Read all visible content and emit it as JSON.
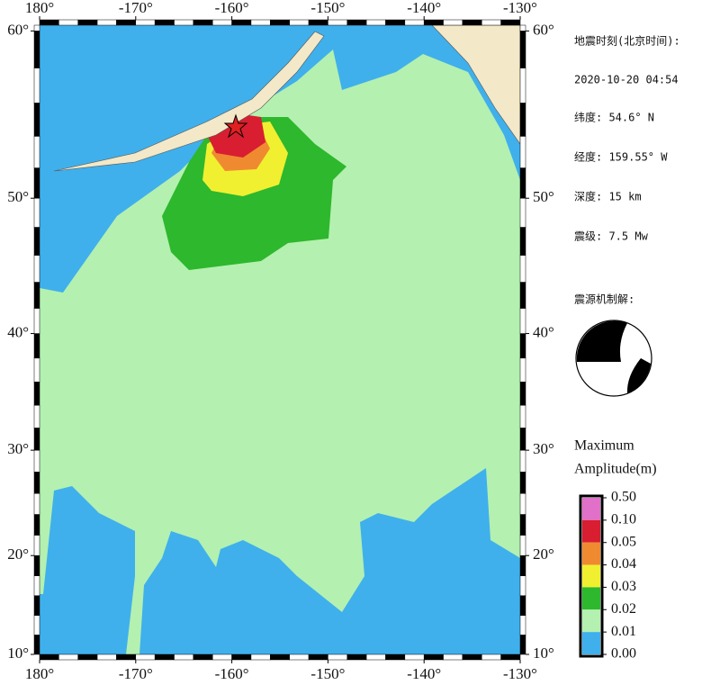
{
  "map": {
    "lon_ticks": [
      {
        "value": 180,
        "label": "180°"
      },
      {
        "value": -170,
        "label": "-170°"
      },
      {
        "value": -160,
        "label": "-160°"
      },
      {
        "value": -150,
        "label": "-150°"
      },
      {
        "value": -140,
        "label": "-140°"
      },
      {
        "value": -130,
        "label": "-130°"
      }
    ],
    "lat_ticks": [
      {
        "value": 60,
        "label": "60°"
      },
      {
        "value": 50,
        "label": "50°"
      },
      {
        "value": 40,
        "label": "40°"
      },
      {
        "value": 30,
        "label": "30°"
      },
      {
        "value": 20,
        "label": "20°"
      },
      {
        "value": 10,
        "label": "10°"
      }
    ]
  },
  "info": {
    "time_label": "地震时刻(北京时间):",
    "time": "2020-10-20 04:54",
    "latitude": "纬度: 54.6° N",
    "longitude": "经度: 159.55° W",
    "depth": "深度: 15 km",
    "magnitude": "震级: 7.5 Mw",
    "mechanism_label": "震源机制解:"
  },
  "legend": {
    "title": [
      "Maximum",
      "Amplitude(m)"
    ],
    "ticks": [
      {
        "value": 0.5,
        "label": "0.50"
      },
      {
        "value": 0.1,
        "label": "0.10"
      },
      {
        "value": 0.05,
        "label": "0.05"
      },
      {
        "value": 0.04,
        "label": "0.04"
      },
      {
        "value": 0.03,
        "label": "0.03"
      },
      {
        "value": 0.02,
        "label": "0.02"
      },
      {
        "value": 0.01,
        "label": "0.01"
      },
      {
        "value": 0,
        "label": "0.00"
      }
    ],
    "colors": [
      "#e070c8",
      "#d81e30",
      "#f08a30",
      "#f0f030",
      "#2db82d",
      "#b4f0b0",
      "#3fb0ec"
    ]
  }
}
